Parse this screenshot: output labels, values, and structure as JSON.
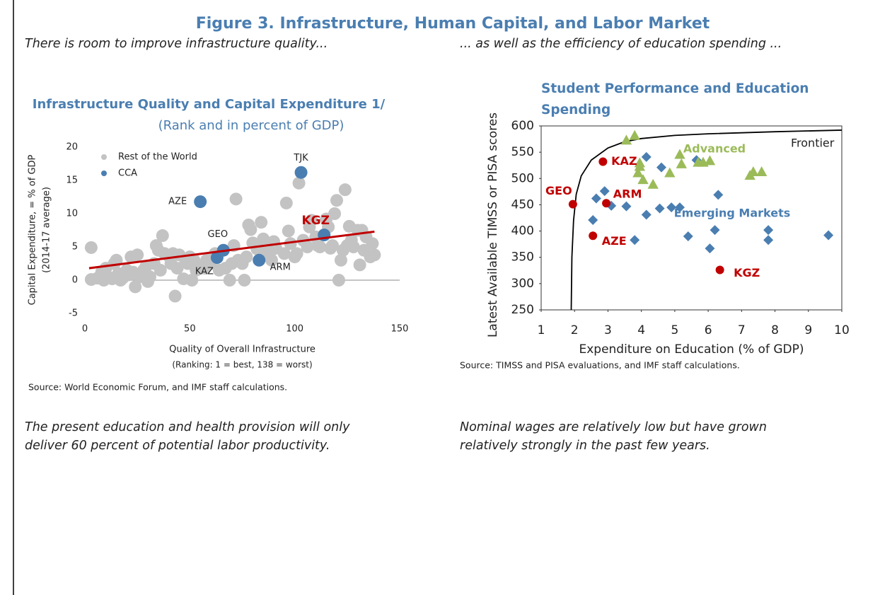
{
  "title": "Figure 3. Infrastructure, Human Capital, and Labor Market",
  "captions": {
    "top_left": "There is room to improve infrastructure quality...",
    "top_right": "... as well as the efficiency of education spending ...",
    "bottom_left": [
      "The present education and health provision will only",
      "deliver 60 percent of potential labor productivity."
    ],
    "bottom_right": [
      "Nominal wages are relatively low but have grown",
      "relatively strongly in the past few years."
    ]
  },
  "chart_data": [
    {
      "type": "scatter",
      "title": "Infrastructure Quality and Capital Expenditure 1/",
      "subtitle": "(Rank and in percent of GDP)",
      "x_label": [
        "Quality of Overall Infrastructure",
        "(Ranking:  1 = best, 138 = worst)"
      ],
      "y_label": [
        "Capital Expenditure, = % of GDP",
        "(2014-17 average)"
      ],
      "source": "Source: World Economic Forum, and IMF staff calculations.",
      "xlim": [
        0,
        150
      ],
      "xticks": [
        0,
        50,
        100,
        150
      ],
      "ylim": [
        -5,
        20
      ],
      "yticks": [
        -5,
        0,
        5,
        10,
        15,
        20
      ],
      "zero_line": true,
      "frame": false,
      "legend": "top-left",
      "series": [
        {
          "name": "Rest of the World",
          "color": "#c3c3c3",
          "marker": "circle",
          "x": [
            3,
            3,
            6,
            8,
            9,
            10,
            11,
            13,
            14,
            15,
            16,
            17,
            18,
            20,
            21,
            22,
            23,
            24,
            25,
            26,
            28,
            29,
            30,
            31,
            33,
            34,
            35,
            36,
            37,
            38,
            40,
            41,
            42,
            43,
            44,
            45,
            47,
            48,
            49,
            50,
            51,
            52,
            53,
            56,
            57,
            58,
            60,
            62,
            64,
            67,
            69,
            70,
            71,
            72,
            73,
            75,
            76,
            77,
            78,
            79,
            80,
            82,
            84,
            85,
            86,
            87,
            88,
            89,
            90,
            91,
            95,
            96,
            97,
            98,
            100,
            101,
            102,
            104,
            106,
            107,
            108,
            110,
            111,
            112,
            115,
            116,
            117,
            118,
            119,
            120,
            121,
            122,
            123,
            124,
            125,
            126,
            127,
            128,
            130,
            131,
            132,
            133,
            134,
            136,
            137,
            138
          ],
          "values": [
            4.9,
            0.1,
            0.3,
            1.2,
            0.0,
            1.8,
            0.5,
            0.2,
            2.5,
            3.0,
            1.0,
            0.0,
            0.3,
            1.5,
            0.8,
            3.5,
            1.2,
            -1.0,
            3.8,
            0.5,
            1.5,
            2.0,
            -0.2,
            0.5,
            2.5,
            5.2,
            4.5,
            1.5,
            6.7,
            4.0,
            3.6,
            2.5,
            4.0,
            -2.4,
            1.8,
            3.8,
            0.2,
            3.0,
            2.5,
            3.5,
            0.0,
            3.0,
            1.5,
            2.0,
            1.8,
            3.0,
            2.5,
            4.0,
            1.5,
            1.8,
            0.0,
            2.5,
            5.2,
            12.2,
            3.0,
            2.5,
            0.0,
            3.5,
            8.3,
            7.6,
            5.6,
            4.7,
            8.7,
            6.2,
            4.0,
            5.0,
            3.5,
            3.0,
            5.8,
            4.8,
            4.0,
            11.6,
            7.4,
            5.5,
            3.5,
            4.0,
            14.6,
            6.0,
            5.0,
            8.0,
            9.0,
            6.5,
            5.2,
            5.0,
            9.2,
            8.0,
            4.8,
            5.2,
            10.0,
            12.0,
            0.0,
            3.0,
            4.5,
            13.6,
            5.2,
            8.1,
            6.0,
            5.0,
            7.5,
            2.3,
            7.5,
            4.5,
            6.5,
            3.5,
            5.5,
            3.8
          ]
        },
        {
          "name": "CCA",
          "color": "#4a7eb1",
          "marker": "circle",
          "x": [
            103,
            55,
            114,
            66,
            63,
            83
          ],
          "values": [
            16.2,
            11.8,
            6.8,
            4.5,
            3.4,
            3.0
          ],
          "point_labels": [
            "TJK",
            "AZE",
            "KGZ",
            "GEO",
            "KAZ",
            "ARM"
          ],
          "label_colors": [
            "#222222",
            "#222222",
            "#c00000",
            "#222222",
            "#222222",
            "#222222"
          ]
        }
      ],
      "trend": {
        "color": "#c00000",
        "x": [
          2,
          138
        ],
        "values": [
          1.8,
          7.3
        ]
      }
    },
    {
      "type": "scatter",
      "title": [
        "Student Performance and Education",
        "Spending"
      ],
      "x_label": [
        "Expenditure on Education (% of GDP)"
      ],
      "y_label": [
        "Latest Available TIMSS or PISA scores"
      ],
      "source": "Source: TIMSS and PISA evaluations, and IMF staff calculations.",
      "xlim": [
        1,
        10
      ],
      "xticks": [
        1,
        2,
        3,
        4,
        5,
        6,
        7,
        8,
        9,
        10
      ],
      "ylim": [
        250,
        600
      ],
      "yticks": [
        250,
        300,
        350,
        400,
        450,
        500,
        550,
        600
      ],
      "zero_line": false,
      "frame": true,
      "series": [
        {
          "name": "Emerging Markets",
          "color": "#4a7eb1",
          "marker": "diamond",
          "x": [
            4.15,
            5.65,
            4.6,
            2.9,
            2.65,
            3.1,
            3.55,
            6.3,
            4.15,
            4.55,
            4.9,
            5.15,
            2.55,
            6.2,
            7.8,
            9.6,
            5.4,
            3.8,
            7.8,
            6.05
          ],
          "values": [
            541,
            535,
            521,
            476,
            462,
            448,
            447,
            469,
            431,
            443,
            445,
            445,
            421,
            402,
            402,
            392,
            390,
            383,
            383,
            367
          ]
        },
        {
          "name": "Advanced",
          "color": "#9bbb59",
          "marker": "triangle",
          "x": [
            3.8,
            3.55,
            3.95,
            3.9,
            4.05,
            4.35,
            4.85,
            5.15,
            5.2,
            5.7,
            5.85,
            6.05,
            7.25,
            7.35,
            7.6,
            3.95
          ],
          "values": [
            581,
            572,
            522,
            510,
            497,
            488,
            510,
            545,
            527,
            530,
            530,
            533,
            505,
            512,
            512,
            529
          ]
        },
        {
          "name": "CCA",
          "color": "#c00000",
          "marker": "circle",
          "x": [
            1.95,
            2.85,
            2.95,
            2.55,
            6.35
          ],
          "values": [
            451,
            532,
            453,
            391,
            326
          ],
          "point_labels": [
            "GEO",
            "KAZ",
            "ARM",
            "AZE",
            "KGZ"
          ],
          "label_colors": [
            "#c00000",
            "#c00000",
            "#c00000",
            "#c00000",
            "#c00000"
          ]
        }
      ],
      "frontier": {
        "name": "Frontier",
        "color": "#000000",
        "x": [
          1.9,
          1.92,
          1.97,
          2.05,
          2.2,
          2.5,
          3,
          3.5,
          4,
          5,
          6,
          8,
          10
        ],
        "values": [
          250,
          350,
          420,
          470,
          505,
          535,
          558,
          570,
          576,
          582,
          585,
          589,
          592
        ]
      }
    }
  ]
}
